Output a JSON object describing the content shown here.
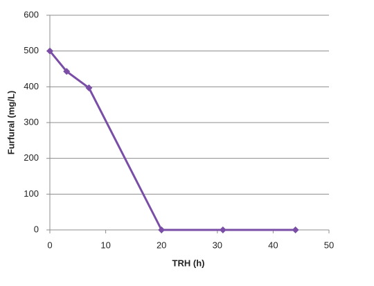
{
  "chart_data": {
    "type": "line",
    "x_label": "TRH  (h)",
    "y_label": "Furfural (mg/L)",
    "x": [
      0,
      3,
      7,
      20,
      31,
      44
    ],
    "values": [
      500,
      443,
      397,
      0,
      0,
      0
    ],
    "color": "#7a4ea6",
    "xlim": [
      0,
      50
    ],
    "xticks": [
      0,
      10,
      20,
      30,
      40,
      50
    ],
    "ylim": [
      0,
      600
    ],
    "yticks": [
      0,
      100,
      200,
      300,
      400,
      500,
      600
    ],
    "grid": true
  }
}
